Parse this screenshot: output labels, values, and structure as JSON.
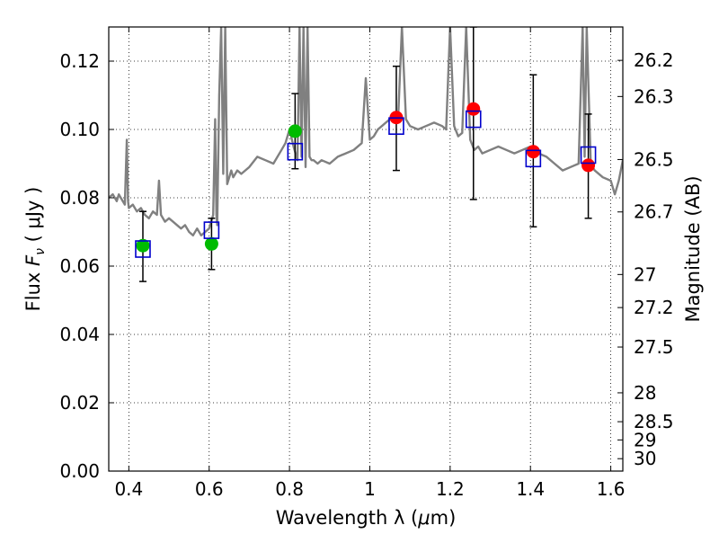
{
  "chart_data": {
    "type": "scatter",
    "title": "",
    "xlabel": "Wavelength  λ (μm)",
    "ylabel": "Flux  Fν  ( μJy )",
    "ylabel_parts": {
      "prefix": "Flux  ",
      "symbol": "F",
      "subscript": "ν",
      "suffix": "  ( μJy )"
    },
    "xlabel_parts": {
      "prefix": "Wavelength  λ (",
      "mu": "μ",
      "suffix": "m)"
    },
    "y2label": "Magnitude (AB)",
    "xlim": [
      0.35,
      1.63
    ],
    "ylim": [
      0.0,
      0.13
    ],
    "grid": true,
    "x_ticks": [
      0.4,
      0.6,
      0.8,
      1.0,
      1.2,
      1.4,
      1.6
    ],
    "x_tick_labels": [
      "0.4",
      "0.6",
      "0.8",
      "1",
      "1.2",
      "1.4",
      "1.6"
    ],
    "y_ticks": [
      0.0,
      0.02,
      0.04,
      0.06,
      0.08,
      0.1,
      0.12
    ],
    "y_tick_labels": [
      "0.00",
      "0.02",
      "0.04",
      "0.06",
      "0.08",
      "0.10",
      "0.12"
    ],
    "mag_ticks": [
      26.2,
      26.3,
      26.5,
      26.7,
      27.0,
      27.2,
      27.5,
      28.0,
      28.5,
      29.0,
      30.0
    ],
    "mag_tick_labels": [
      "26.2",
      "26.3",
      "26.5",
      "26.7",
      "27",
      "27.2",
      "27.5",
      "28",
      "28.5",
      "29",
      "30"
    ],
    "series": [
      {
        "marker": "circle",
        "color": "#00bb00",
        "x": [
          0.435,
          0.606,
          0.814
        ],
        "y": [
          0.066,
          0.0665,
          0.0995
        ]
      },
      {
        "marker": "circle",
        "color": "#ff0000",
        "x": [
          1.066,
          1.258,
          1.407,
          1.544
        ],
        "y": [
          0.1035,
          0.106,
          0.0935,
          0.0895
        ]
      },
      {
        "marker": "open-square",
        "color": "#0000cc",
        "x": [
          0.435,
          0.606,
          0.814,
          1.066,
          1.258,
          1.407,
          1.544
        ],
        "y": [
          0.065,
          0.0705,
          0.0935,
          0.101,
          0.103,
          0.0915,
          0.0925
        ]
      },
      {
        "marker": "errorbar",
        "color": "#000000",
        "x": [
          0.435,
          0.606,
          0.814,
          1.066,
          1.258,
          1.407,
          1.544
        ],
        "y_low": [
          0.0555,
          0.059,
          0.0885,
          0.088,
          0.0795,
          0.0715,
          0.074
        ],
        "y_high": [
          0.076,
          0.074,
          0.1105,
          0.1185,
          0.13,
          0.116,
          0.1045
        ]
      },
      {
        "marker": "line",
        "color": "#808080",
        "x": [
          0.35,
          0.36,
          0.37,
          0.375,
          0.38,
          0.39,
          0.395,
          0.398,
          0.4,
          0.41,
          0.42,
          0.43,
          0.44,
          0.45,
          0.46,
          0.47,
          0.475,
          0.48,
          0.49,
          0.5,
          0.51,
          0.52,
          0.53,
          0.54,
          0.55,
          0.56,
          0.57,
          0.58,
          0.59,
          0.6,
          0.61,
          0.615,
          0.618,
          0.62,
          0.625,
          0.63,
          0.635,
          0.64,
          0.645,
          0.65,
          0.655,
          0.66,
          0.67,
          0.68,
          0.69,
          0.7,
          0.72,
          0.74,
          0.76,
          0.78,
          0.79,
          0.8,
          0.81,
          0.82,
          0.825,
          0.83,
          0.835,
          0.84,
          0.845,
          0.85,
          0.855,
          0.86,
          0.87,
          0.88,
          0.9,
          0.92,
          0.94,
          0.96,
          0.98,
          0.99,
          1.0,
          1.01,
          1.02,
          1.03,
          1.04,
          1.05,
          1.06,
          1.07,
          1.08,
          1.09,
          1.1,
          1.12,
          1.14,
          1.16,
          1.18,
          1.19,
          1.2,
          1.21,
          1.22,
          1.23,
          1.24,
          1.25,
          1.26,
          1.27,
          1.28,
          1.3,
          1.32,
          1.34,
          1.36,
          1.38,
          1.4,
          1.42,
          1.44,
          1.46,
          1.48,
          1.5,
          1.52,
          1.53,
          1.535,
          1.54,
          1.55,
          1.56,
          1.58,
          1.6,
          1.61,
          1.62,
          1.63
        ],
        "y": [
          0.08,
          0.081,
          0.079,
          0.081,
          0.08,
          0.078,
          0.097,
          0.079,
          0.077,
          0.078,
          0.076,
          0.077,
          0.075,
          0.074,
          0.076,
          0.075,
          0.085,
          0.075,
          0.073,
          0.074,
          0.073,
          0.072,
          0.071,
          0.072,
          0.07,
          0.069,
          0.071,
          0.069,
          0.07,
          0.071,
          0.075,
          0.103,
          0.075,
          0.072,
          0.11,
          0.13,
          0.087,
          0.13,
          0.084,
          0.086,
          0.088,
          0.086,
          0.088,
          0.087,
          0.088,
          0.089,
          0.092,
          0.091,
          0.09,
          0.094,
          0.096,
          0.1,
          0.095,
          0.091,
          0.13,
          0.092,
          0.13,
          0.089,
          0.13,
          0.092,
          0.091,
          0.091,
          0.09,
          0.091,
          0.09,
          0.092,
          0.093,
          0.094,
          0.096,
          0.115,
          0.097,
          0.098,
          0.1,
          0.101,
          0.102,
          0.103,
          0.104,
          0.102,
          0.13,
          0.103,
          0.101,
          0.1,
          0.101,
          0.102,
          0.101,
          0.1,
          0.13,
          0.101,
          0.098,
          0.099,
          0.13,
          0.097,
          0.094,
          0.095,
          0.093,
          0.094,
          0.095,
          0.094,
          0.093,
          0.094,
          0.095,
          0.093,
          0.092,
          0.09,
          0.088,
          0.089,
          0.09,
          0.13,
          0.092,
          0.13,
          0.09,
          0.088,
          0.086,
          0.085,
          0.081,
          0.085,
          0.091
        ]
      }
    ]
  }
}
